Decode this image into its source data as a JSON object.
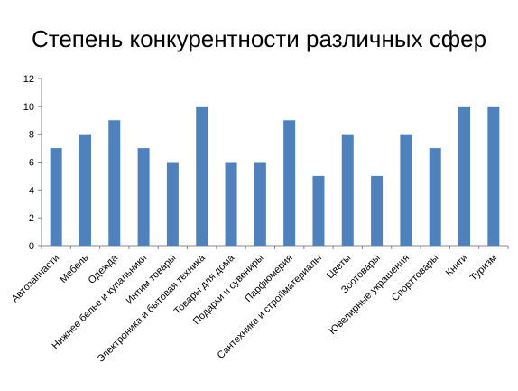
{
  "chart_data": {
    "type": "bar",
    "title": "Степень конкурентности различных сфер",
    "xlabel": "",
    "ylabel": "",
    "ylim": [
      0,
      12
    ],
    "yticks": [
      0,
      2,
      4,
      6,
      8,
      10,
      12
    ],
    "grid": false,
    "legend": "none",
    "bar_color": "#4f81bd",
    "categories": [
      "Автозапчасти",
      "Мебель",
      "Одежда",
      "Нижнее белье и купальники",
      "Интим товары",
      "Электроника и бытовая техника",
      "Товары для дома",
      "Подарки и сувениры",
      "Парфюмерия",
      "Сантехника и стройматериалы",
      "Цветы",
      "Зоотовары",
      "Ювелирные украшения",
      "Спорттовары",
      "Книги",
      "Туризм"
    ],
    "values": [
      7,
      8,
      9,
      7,
      6,
      10,
      6,
      6,
      9,
      5,
      8,
      5,
      8,
      7,
      10,
      10
    ]
  }
}
